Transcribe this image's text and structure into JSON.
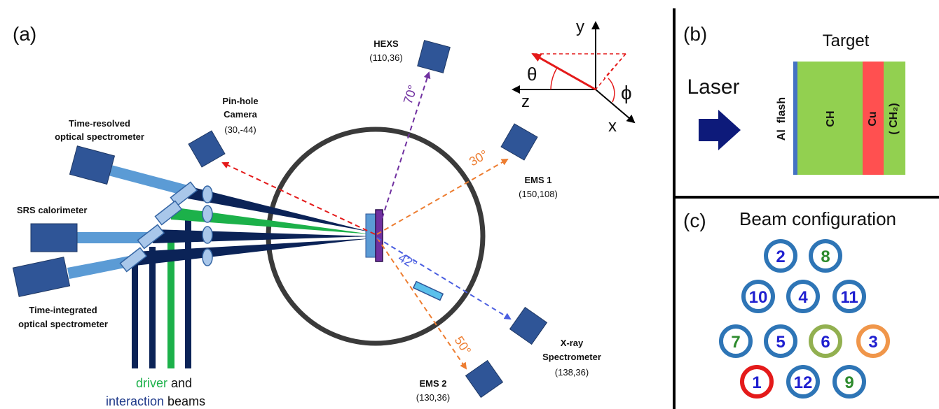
{
  "panels": {
    "a": "(a)",
    "b": "(b)",
    "c": "(c)"
  },
  "instruments": {
    "hexs": {
      "name": "HEXS",
      "coords": "(110,36)",
      "angle": "70°"
    },
    "pinhole": {
      "name1": "Pin-hole",
      "name2": "Camera",
      "coords": "(30,-44)"
    },
    "ems1": {
      "name": "EMS 1",
      "coords": "(150,108)",
      "angle": "30°"
    },
    "ems2": {
      "name": "EMS 2",
      "coords": "(130,36)",
      "angle": "50°"
    },
    "xray": {
      "name1": "X-ray",
      "name2": "Spectrometer",
      "coords": "(138,36)",
      "angle": "42°"
    },
    "tros": {
      "name1": "Time-resolved",
      "name2": "optical spectrometer"
    },
    "srs": {
      "name": "SRS calorimeter"
    },
    "tios": {
      "name1": "Time-integrated",
      "name2": "optical spectrometer"
    }
  },
  "beams_caption": {
    "driver": "driver",
    "and": " and",
    "interaction": "interaction",
    "beams": " beams"
  },
  "axes": {
    "x": "x",
    "y": "y",
    "z": "z",
    "theta": "θ",
    "phi": "ϕ"
  },
  "target_panel": {
    "title": "Target",
    "laser": "Laser",
    "al_flash": "Al  flash",
    "ch": "CH",
    "cu": "Cu",
    "ch2": "( CH₂)",
    "colors": {
      "al": "#4472c4",
      "ch": "#92d050",
      "cu": "#ff5050"
    }
  },
  "beam_config": {
    "title": "Beam configuration",
    "beams": [
      {
        "label": "2",
        "text_color": "#1f1fd0",
        "ring_color": "#2e75b6"
      },
      {
        "label": "8",
        "text_color": "#2e8b2e",
        "ring_color": "#2e75b6"
      },
      {
        "label": "10",
        "text_color": "#1f1fd0",
        "ring_color": "#2e75b6"
      },
      {
        "label": "4",
        "text_color": "#1f1fd0",
        "ring_color": "#2e75b6"
      },
      {
        "label": "11",
        "text_color": "#1f1fd0",
        "ring_color": "#2e75b6"
      },
      {
        "label": "7",
        "text_color": "#2e8b2e",
        "ring_color": "#2e75b6"
      },
      {
        "label": "5",
        "text_color": "#1f1fd0",
        "ring_color": "#2e75b6"
      },
      {
        "label": "6",
        "text_color": "#1f1fd0",
        "ring_color": "#92b050"
      },
      {
        "label": "3",
        "text_color": "#1f1fd0",
        "ring_color": "#f0964a"
      },
      {
        "label": "1",
        "text_color": "#1f1fd0",
        "ring_color": "#e41a1a"
      },
      {
        "label": "12",
        "text_color": "#1f1fd0",
        "ring_color": "#2e75b6"
      },
      {
        "label": "9",
        "text_color": "#2e8b2e",
        "ring_color": "#2e75b6"
      }
    ]
  },
  "colors": {
    "driver_beam": "#1cb14a",
    "interaction_beam": "#0b2357",
    "instrument": "#2f5597",
    "arm": "#5b9bd5",
    "hexs_arrow": "#7030a0",
    "ems_arrow": "#ed7d31",
    "pinhole_arrow": "#e41a1a",
    "xray_arrow": "#4a5ee0"
  }
}
